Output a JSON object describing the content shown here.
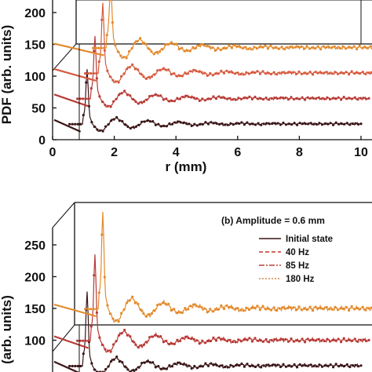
{
  "chart_data": [
    {
      "id": "panel-a",
      "type": "line",
      "xlabel": "r (mm)",
      "ylabel": "PDF (arb. units)",
      "xlim": [
        0,
        10
      ],
      "ylim": [
        0,
        250
      ],
      "x_ticks": [
        0,
        2,
        4,
        6,
        8,
        10
      ],
      "x_tick_labels": [
        "0",
        "2",
        "4",
        "6",
        "8",
        "10"
      ],
      "y_ticks": [
        0,
        50,
        100,
        150,
        200
      ],
      "y_tick_labels": [
        "0",
        "50",
        "100",
        "150",
        "200"
      ],
      "baselines": [
        25,
        65,
        105,
        145
      ],
      "series_colors": [
        "#3a1416",
        "#b83a36",
        "#d65a3e",
        "#e38a2c"
      ]
    },
    {
      "id": "panel-b",
      "type": "line",
      "title": "(b) Amplitude = 0.6 mm",
      "ylabel": "(arb. units)",
      "ylim": [
        0,
        250
      ],
      "y_ticks": [
        100,
        150,
        200,
        250
      ],
      "y_tick_labels": [
        "100",
        "150",
        "200",
        "250"
      ],
      "baselines": [
        60,
        100,
        150
      ],
      "legend": [
        {
          "label": "Initial state",
          "color": "#3a1416",
          "dash": "none"
        },
        {
          "label": "40 Hz",
          "color": "#c0392b",
          "dash": "5,3"
        },
        {
          "label": "85 Hz",
          "color": "#b5433a",
          "dash": "7,2,2,2"
        },
        {
          "label": "180 Hz",
          "color": "#d9824a",
          "dash": "2,2"
        }
      ],
      "series_colors": [
        "#3a1416",
        "#b83a36",
        "#e38a2c"
      ]
    }
  ]
}
